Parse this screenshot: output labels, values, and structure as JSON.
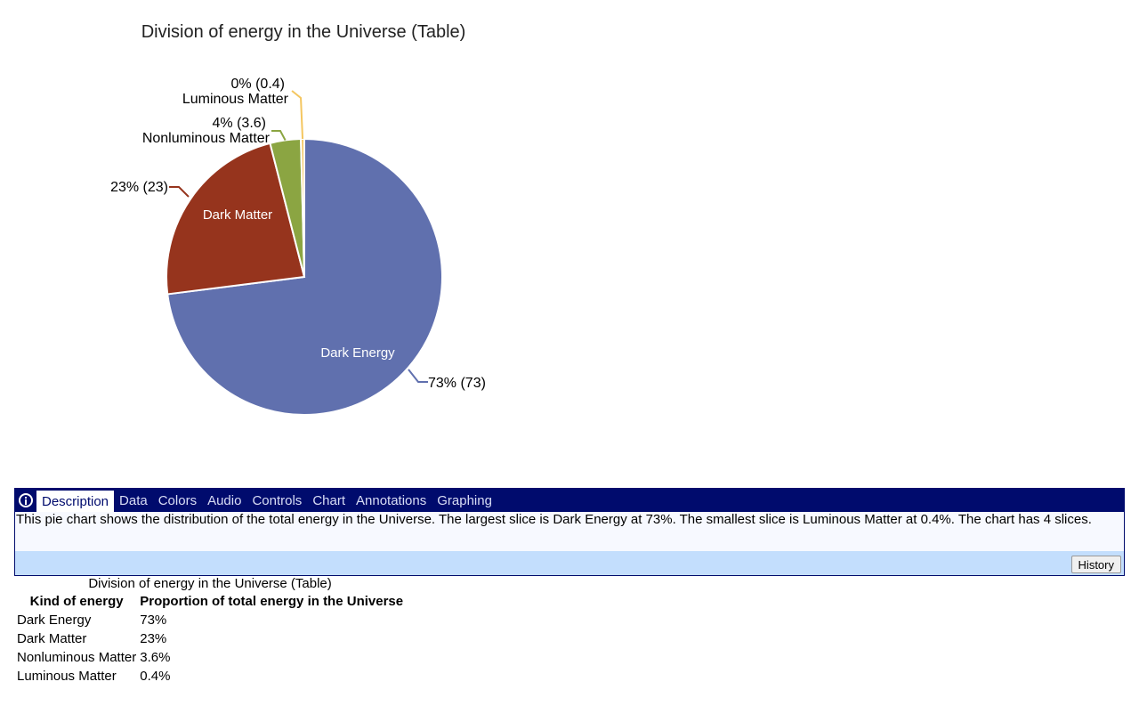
{
  "chart_data": {
    "type": "pie",
    "title": "Division of energy in the Universe (Table)",
    "slices": [
      {
        "name": "Dark Energy",
        "value": 73,
        "percent_label": "73% (73)",
        "color": "#6070ae"
      },
      {
        "name": "Dark Matter",
        "value": 23,
        "percent_label": "23% (23)",
        "color": "#96341d"
      },
      {
        "name": "Nonluminous Matter",
        "value": 3.6,
        "percent_label": "4% (3.6)",
        "color": "#8ba542"
      },
      {
        "name": "Luminous Matter",
        "value": 0.4,
        "percent_label": "0% (0.4)",
        "color": "#f4c660"
      }
    ]
  },
  "panel": {
    "tabs": [
      "Description",
      "Data",
      "Colors",
      "Audio",
      "Controls",
      "Chart",
      "Annotations",
      "Graphing"
    ],
    "active_tab": "Description",
    "description": "This pie chart shows the distribution of the total energy in the Universe. The largest slice is Dark Energy at 73%. The smallest slice is Luminous Matter at 0.4%. The chart has 4 slices.",
    "history_label": "History",
    "accent_color": "#000b6d",
    "footer_color": "#c3defd"
  },
  "table": {
    "caption": "Division of energy in the Universe (Table)",
    "headers": [
      "Kind of energy",
      "Proportion of total energy in the Universe"
    ],
    "rows": [
      [
        "Dark Energy",
        "73%"
      ],
      [
        "Dark Matter",
        "23%"
      ],
      [
        "Nonluminous Matter",
        "3.6%"
      ],
      [
        "Luminous Matter",
        "0.4%"
      ]
    ]
  }
}
